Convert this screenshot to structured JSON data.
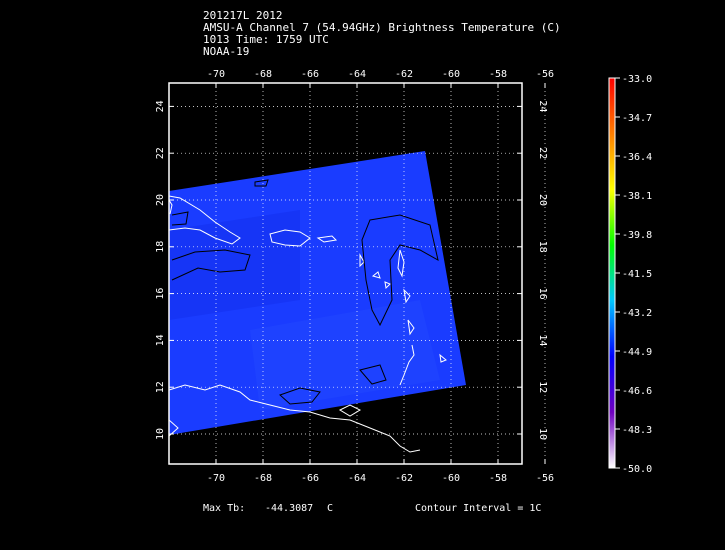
{
  "header": {
    "line1": "201217L 2012",
    "line2": "AMSU-A Channel 7 (54.94GHz) Brightness Temperature (C)",
    "line3": "1013 Time: 1759 UTC",
    "line4": "NOAA-19"
  },
  "map": {
    "lon_ticks": [
      "-70",
      "-68",
      "-66",
      "-64",
      "-62",
      "-60",
      "-58",
      "-56"
    ],
    "lat_ticks": [
      "10",
      "12",
      "14",
      "16",
      "18",
      "20",
      "22",
      "24"
    ],
    "swath_color": "#1238ff"
  },
  "colorbar": {
    "labels": [
      "-33.0",
      "-34.7",
      "-36.4",
      "-38.1",
      "-39.8",
      "-41.5",
      "-43.2",
      "-44.9",
      "-46.6",
      "-48.3",
      "-50.0"
    ],
    "colors": [
      "#ff0000",
      "#ff7f00",
      "#ffff00",
      "#00ff00",
      "#00c8ff",
      "#0000ff",
      "#7000c0",
      "#ffffff"
    ]
  },
  "footer": {
    "max_label": "Max Tb:",
    "max_value": "-44.3087",
    "max_unit": "C",
    "contour": "Contour Interval = 1C"
  }
}
